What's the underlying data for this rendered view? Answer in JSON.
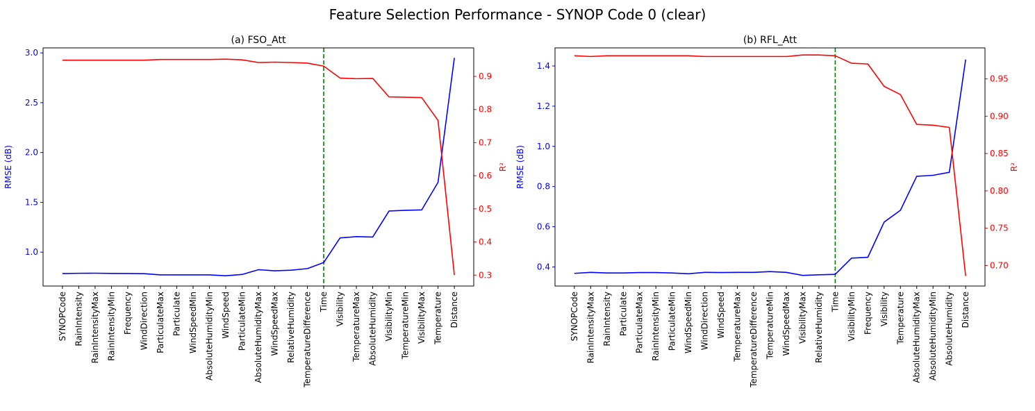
{
  "figure": {
    "suptitle": "Feature Selection Performance - SYNOP Code 0 (clear)"
  },
  "colors": {
    "rmse": "#0000ff",
    "r2": "#ff0000",
    "divider": "#008000",
    "axes": "#000000"
  },
  "chart_data": [
    {
      "type": "line",
      "title": "(a) FSO_Att",
      "xlabel": "",
      "ylabel_left": "RMSE (dB)",
      "ylabel_right": "R²",
      "categories": [
        "SYNOPCode",
        "RainIntensity",
        "RainIntensityMax",
        "RainIntensityMin",
        "Frequency",
        "WindDirection",
        "ParticulateMax",
        "Particulate",
        "WindSpeedMin",
        "AbsoluteHumidityMin",
        "WindSpeed",
        "ParticulateMin",
        "AbsoluteHumidityMax",
        "WindSpeedMax",
        "RelativeHumidity",
        "TemperatureDifference",
        "Time",
        "Visibility",
        "TemperatureMax",
        "AbsoluteHumidity",
        "VisibilityMin",
        "TemperatureMin",
        "VisibilityMax",
        "Temperature",
        "Distance"
      ],
      "divider_category": "Time",
      "left_axis": {
        "ylim": [
          0.66,
          3.05
        ],
        "ticks": [
          1.0,
          1.5,
          2.0,
          2.5,
          3.0
        ],
        "tick_labels": [
          "1.0",
          "1.5",
          "2.0",
          "2.5",
          "3.0"
        ]
      },
      "right_axis": {
        "ylim": [
          0.267,
          0.986
        ],
        "ticks": [
          0.3,
          0.4,
          0.5,
          0.6,
          0.7,
          0.8,
          0.9
        ],
        "tick_labels": [
          "0.3",
          "0.4",
          "0.5",
          "0.6",
          "0.7",
          "0.8",
          "0.9"
        ]
      },
      "series": [
        {
          "axis": "left",
          "values": [
            0.785,
            0.788,
            0.789,
            0.787,
            0.786,
            0.784,
            0.772,
            0.772,
            0.772,
            0.772,
            0.763,
            0.776,
            0.824,
            0.813,
            0.819,
            0.835,
            0.896,
            1.143,
            1.156,
            1.152,
            1.413,
            1.42,
            1.424,
            1.701,
            2.95
          ]
        },
        {
          "axis": "right",
          "values": [
            0.949,
            0.949,
            0.949,
            0.949,
            0.949,
            0.949,
            0.951,
            0.951,
            0.951,
            0.951,
            0.952,
            0.95,
            0.942,
            0.943,
            0.942,
            0.94,
            0.931,
            0.895,
            0.893,
            0.894,
            0.838,
            0.837,
            0.836,
            0.767,
            0.3
          ]
        }
      ]
    },
    {
      "type": "line",
      "title": "(b) RFL_Att",
      "xlabel": "",
      "ylabel_left": "RMSE (dB)",
      "ylabel_right": "R²",
      "categories": [
        "SYNOPCode",
        "RainIntensityMax",
        "RainIntensity",
        "Particulate",
        "ParticulateMax",
        "RainIntensityMin",
        "ParticulateMin",
        "WindSpeedMin",
        "WindDirection",
        "WindSpeed",
        "TemperatureMax",
        "TemperatureDifference",
        "TemperatureMin",
        "WindSpeedMax",
        "VisibilityMax",
        "RelativeHumidity",
        "Time",
        "VisibilityMin",
        "Frequency",
        "Visibility",
        "Temperature",
        "AbsoluteHumidityMax",
        "AbsoluteHumidityMin",
        "AbsoluteHumidity",
        "Distance"
      ],
      "divider_category": "Time",
      "left_axis": {
        "ylim": [
          0.305,
          1.49
        ],
        "ticks": [
          0.4,
          0.6,
          0.8,
          1.0,
          1.2,
          1.4
        ],
        "tick_labels": [
          "0.4",
          "0.6",
          "0.8",
          "1.0",
          "1.2",
          "1.4"
        ]
      },
      "right_axis": {
        "ylim": [
          0.6725,
          0.9915
        ],
        "ticks": [
          0.7,
          0.75,
          0.8,
          0.85,
          0.9,
          0.95
        ],
        "tick_labels": [
          "0.70",
          "0.75",
          "0.80",
          "0.85",
          "0.90",
          "0.95"
        ]
      },
      "series": [
        {
          "axis": "left",
          "values": [
            0.368,
            0.373,
            0.37,
            0.37,
            0.372,
            0.372,
            0.37,
            0.366,
            0.373,
            0.372,
            0.373,
            0.373,
            0.377,
            0.373,
            0.358,
            0.361,
            0.363,
            0.444,
            0.448,
            0.623,
            0.682,
            0.851,
            0.856,
            0.871,
            1.432
          ]
        },
        {
          "axis": "right",
          "values": [
            0.981,
            0.98,
            0.981,
            0.981,
            0.981,
            0.981,
            0.981,
            0.981,
            0.98,
            0.98,
            0.98,
            0.98,
            0.98,
            0.98,
            0.982,
            0.982,
            0.981,
            0.971,
            0.97,
            0.94,
            0.929,
            0.889,
            0.888,
            0.885,
            0.686
          ]
        }
      ]
    }
  ]
}
